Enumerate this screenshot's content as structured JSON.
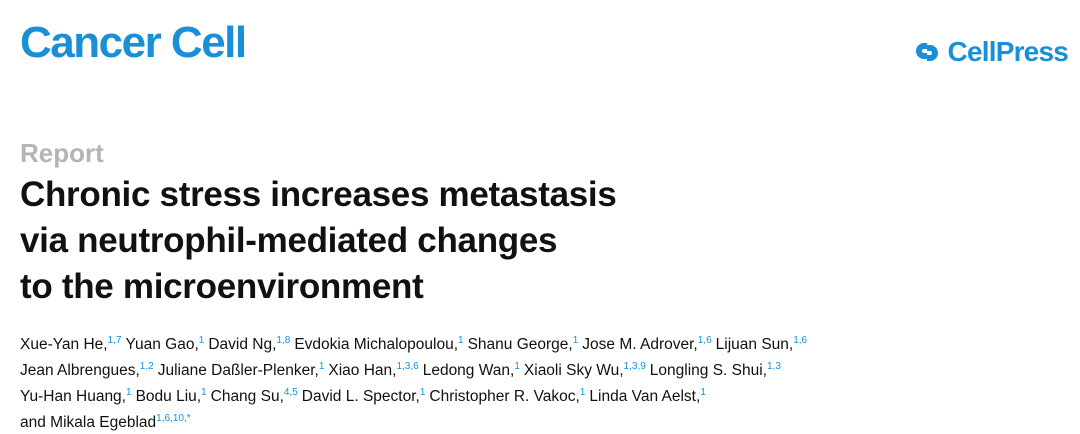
{
  "journal": "Cancer Cell",
  "publisher": "CellPress",
  "article_type": "Report",
  "title_lines": [
    "Chronic stress increases metastasis",
    "via neutrophil-mediated changes",
    "to the microenvironment"
  ],
  "author_lines": [
    [
      {
        "name": "Xue-Yan He,",
        "aff": "1,7"
      },
      {
        "name": "Yuan Gao,",
        "aff": "1"
      },
      {
        "name": "David Ng,",
        "aff": "1,8"
      },
      {
        "name": "Evdokia Michalopoulou,",
        "aff": "1"
      },
      {
        "name": "Shanu George,",
        "aff": "1"
      },
      {
        "name": "Jose M. Adrover,",
        "aff": "1,6"
      },
      {
        "name": "Lijuan Sun,",
        "aff": "1,6"
      }
    ],
    [
      {
        "name": "Jean Albrengues,",
        "aff": "1,2"
      },
      {
        "name": "Juliane Daßler-Plenker,",
        "aff": "1"
      },
      {
        "name": "Xiao Han,",
        "aff": "1,3,6"
      },
      {
        "name": "Ledong Wan,",
        "aff": "1"
      },
      {
        "name": "Xiaoli Sky Wu,",
        "aff": "1,3,9"
      },
      {
        "name": "Longling S. Shui,",
        "aff": "1,3"
      }
    ],
    [
      {
        "name": "Yu-Han Huang,",
        "aff": "1"
      },
      {
        "name": "Bodu Liu,",
        "aff": "1"
      },
      {
        "name": "Chang Su,",
        "aff": "4,5"
      },
      {
        "name": "David L. Spector,",
        "aff": "1"
      },
      {
        "name": "Christopher R. Vakoc,",
        "aff": "1"
      },
      {
        "name": "Linda Van Aelst,",
        "aff": "1"
      }
    ],
    [
      {
        "name": "and Mikala Egeblad",
        "aff": "1,6,10,*"
      }
    ]
  ]
}
